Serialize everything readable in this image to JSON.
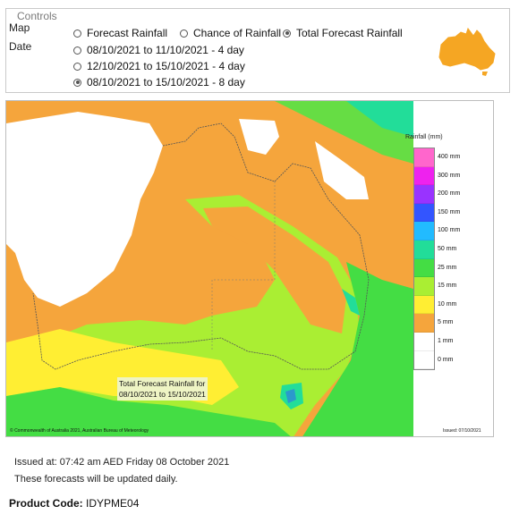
{
  "controls": {
    "legend": "Controls",
    "map_label": "Map",
    "date_label": "Date",
    "map_options": [
      {
        "label": "Forecast Rainfall",
        "selected": false
      },
      {
        "label": "Chance of Rainfall",
        "selected": false
      },
      {
        "label": "Total Forecast Rainfall",
        "selected": true
      }
    ],
    "date_options": [
      {
        "label": "08/10/2021 to 11/10/2021 - 4 day",
        "selected": false
      },
      {
        "label": "12/10/2021 to 15/10/2021 - 4 day",
        "selected": false
      },
      {
        "label": "08/10/2021 to 15/10/2021 - 8 day",
        "selected": true
      }
    ],
    "australia_icon": "australia-map-icon",
    "australia_color": "#f5a623"
  },
  "map": {
    "legend_title": "Rainfall (mm)",
    "legend_items": [
      {
        "label": "400 mm",
        "color": "#ff66cc"
      },
      {
        "label": "300 mm",
        "color": "#ee22ee"
      },
      {
        "label": "200 mm",
        "color": "#9933ff"
      },
      {
        "label": "150 mm",
        "color": "#3355ff"
      },
      {
        "label": "100 mm",
        "color": "#22bbff"
      },
      {
        "label": "50 mm",
        "color": "#22dd99"
      },
      {
        "label": "25 mm",
        "color": "#44dd44"
      },
      {
        "label": "15 mm",
        "color": "#aaee33"
      },
      {
        "label": "10 mm",
        "color": "#ffee33"
      },
      {
        "label": "5 mm",
        "color": "#f5a53c"
      },
      {
        "label": "1 mm",
        "color": "#ffffff"
      },
      {
        "label": "0 mm",
        "color": "#ffffff"
      }
    ],
    "caption_line1": "Total Forecast Rainfall for",
    "caption_line2": "08/10/2021 to 15/10/2021",
    "copyright": "© Commonwealth of Australia 2021, Australian Bureau of Meteorology",
    "issued_small": "Issued: 07/10/2021"
  },
  "footer": {
    "issued": "Issued at: 07:42 am AED Friday 08 October 2021",
    "updated": "These forecasts will be updated daily.",
    "product_label": "Product Code:",
    "product_code": "IDYPME04"
  }
}
